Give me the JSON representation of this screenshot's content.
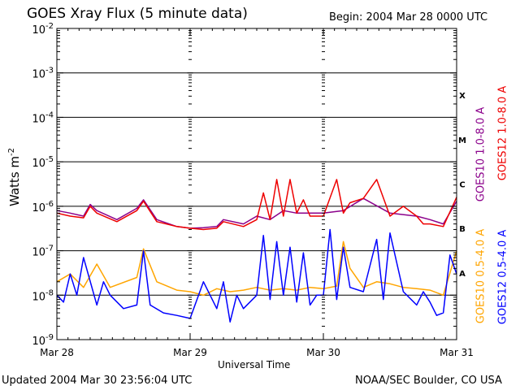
{
  "header": {
    "title": "GOES Xray Flux (5 minute data)",
    "begin": "Begin:  2004 Mar 28 0000 UTC"
  },
  "footer": {
    "updated": "Updated 2004 Mar 30 23:56:04 UTC",
    "credit": "NOAA/SEC Boulder, CO USA"
  },
  "colors": {
    "goes10_long": "#8b008b",
    "goes12_long": "#ee0000",
    "goes10_short": "#ffa500",
    "goes12_short": "#0000ff"
  },
  "chart_data": {
    "type": "line",
    "title": "GOES Xray Flux (5 minute data)",
    "xlabel": "Universal Time",
    "ylabel": "Watts m",
    "ylabel_sup": "-2",
    "yscale": "log",
    "ylim": [
      1e-09,
      0.01
    ],
    "xlim": [
      "2004-03-28",
      "2004-03-31"
    ],
    "x_tick_labels": [
      "Mar 28",
      "Mar 29",
      "Mar 30",
      "Mar 31"
    ],
    "y_tick_labels": [
      {
        "base": "10",
        "exp": "-9"
      },
      {
        "base": "10",
        "exp": "-8"
      },
      {
        "base": "10",
        "exp": "-7"
      },
      {
        "base": "10",
        "exp": "-6"
      },
      {
        "base": "10",
        "exp": "-5"
      },
      {
        "base": "10",
        "exp": "-4"
      },
      {
        "base": "10",
        "exp": "-3"
      },
      {
        "base": "10",
        "exp": "-2"
      }
    ],
    "flare_classes": [
      "A",
      "B",
      "C",
      "M",
      "X"
    ],
    "grid": "horizontal at each decade from 1e-8 to 1e-3",
    "series": [
      {
        "name": "GOES10 1.0-8.0 A",
        "color": "#8b008b",
        "x_days": [
          0.0,
          0.1,
          0.2,
          0.25,
          0.3,
          0.45,
          0.6,
          0.65,
          0.75,
          0.9,
          1.0,
          1.1,
          1.2,
          1.25,
          1.4,
          1.5,
          1.6,
          1.7,
          1.8,
          1.9,
          2.0,
          2.15,
          2.3,
          2.5,
          2.7,
          2.8,
          2.9,
          3.0
        ],
        "values": [
          8e-07,
          7e-07,
          6e-07,
          1.1e-06,
          8e-07,
          5e-07,
          9e-07,
          1.4e-06,
          5e-07,
          3.5e-07,
          3.2e-07,
          3.3e-07,
          3.5e-07,
          5e-07,
          4e-07,
          6e-07,
          5e-07,
          8e-07,
          7e-07,
          7e-07,
          7e-07,
          8e-07,
          1.5e-06,
          7e-07,
          6e-07,
          5e-07,
          4e-07,
          1.3e-06
        ]
      },
      {
        "name": "GOES12 1.0-8.0 A",
        "color": "#ee0000",
        "x_days": [
          0.0,
          0.1,
          0.2,
          0.25,
          0.3,
          0.45,
          0.6,
          0.65,
          0.75,
          0.9,
          1.0,
          1.1,
          1.2,
          1.25,
          1.4,
          1.5,
          1.55,
          1.6,
          1.65,
          1.7,
          1.75,
          1.8,
          1.85,
          1.9,
          2.0,
          2.1,
          2.15,
          2.2,
          2.3,
          2.4,
          2.5,
          2.6,
          2.7,
          2.75,
          2.8,
          2.9,
          3.0
        ],
        "values": [
          7e-07,
          6e-07,
          5.5e-07,
          1e-06,
          7e-07,
          4.5e-07,
          8e-07,
          1.3e-06,
          4.5e-07,
          3.5e-07,
          3.2e-07,
          3e-07,
          3.2e-07,
          4.5e-07,
          3.5e-07,
          5e-07,
          2e-06,
          5e-07,
          4e-06,
          6e-07,
          4e-06,
          7e-07,
          1.4e-06,
          6e-07,
          6e-07,
          4e-06,
          7e-07,
          1.2e-06,
          1.5e-06,
          4e-06,
          6e-07,
          1e-06,
          6e-07,
          4e-07,
          4e-07,
          3.5e-07,
          1.6e-06
        ]
      },
      {
        "name": "GOES10 0.5-4.0 A",
        "color": "#ffa500",
        "x_days": [
          0.0,
          0.1,
          0.2,
          0.3,
          0.4,
          0.6,
          0.65,
          0.75,
          0.9,
          1.0,
          1.1,
          1.2,
          1.3,
          1.4,
          1.5,
          1.6,
          1.7,
          1.8,
          1.9,
          2.0,
          2.1,
          2.15,
          2.2,
          2.3,
          2.4,
          2.5,
          2.6,
          2.7,
          2.8,
          2.9,
          3.0
        ],
        "values": [
          2e-08,
          3e-08,
          1.5e-08,
          5e-08,
          1.5e-08,
          2.5e-08,
          1.1e-07,
          2e-08,
          1.3e-08,
          1.2e-08,
          1e-08,
          1.4e-08,
          1.2e-08,
          1.3e-08,
          1.5e-08,
          1.3e-08,
          1.4e-08,
          1.3e-08,
          1.5e-08,
          1.4e-08,
          1.6e-08,
          1.6e-07,
          4e-08,
          1.5e-08,
          2e-08,
          1.8e-08,
          1.5e-08,
          1.4e-08,
          1.3e-08,
          1e-08,
          1e-07
        ]
      },
      {
        "name": "GOES12 0.5-4.0 A",
        "color": "#0000ff",
        "x_days": [
          0.0,
          0.05,
          0.1,
          0.15,
          0.2,
          0.3,
          0.35,
          0.4,
          0.5,
          0.6,
          0.65,
          0.7,
          0.8,
          0.9,
          1.0,
          1.1,
          1.2,
          1.25,
          1.3,
          1.35,
          1.4,
          1.5,
          1.55,
          1.6,
          1.65,
          1.7,
          1.75,
          1.8,
          1.85,
          1.9,
          1.95,
          2.0,
          2.05,
          2.1,
          2.15,
          2.2,
          2.3,
          2.4,
          2.45,
          2.5,
          2.6,
          2.7,
          2.75,
          2.8,
          2.85,
          2.9,
          2.95,
          3.0
        ],
        "values": [
          1e-08,
          7e-09,
          3e-08,
          1e-08,
          7e-08,
          6e-09,
          2e-08,
          1e-08,
          5e-09,
          6e-09,
          1e-07,
          6e-09,
          4e-09,
          3.5e-09,
          3e-09,
          2e-08,
          5e-09,
          2e-08,
          2.5e-09,
          1e-08,
          5e-09,
          1e-08,
          2.2e-07,
          8e-09,
          1.6e-07,
          1e-08,
          1.2e-07,
          7e-09,
          9e-08,
          6e-09,
          1e-08,
          1e-08,
          3e-07,
          8e-09,
          1.2e-07,
          1.5e-08,
          1.2e-08,
          1.8e-07,
          8e-09,
          2.5e-07,
          1.2e-08,
          6e-09,
          1.2e-08,
          7e-09,
          3.5e-09,
          4e-09,
          8e-08,
          3e-08
        ]
      }
    ]
  }
}
